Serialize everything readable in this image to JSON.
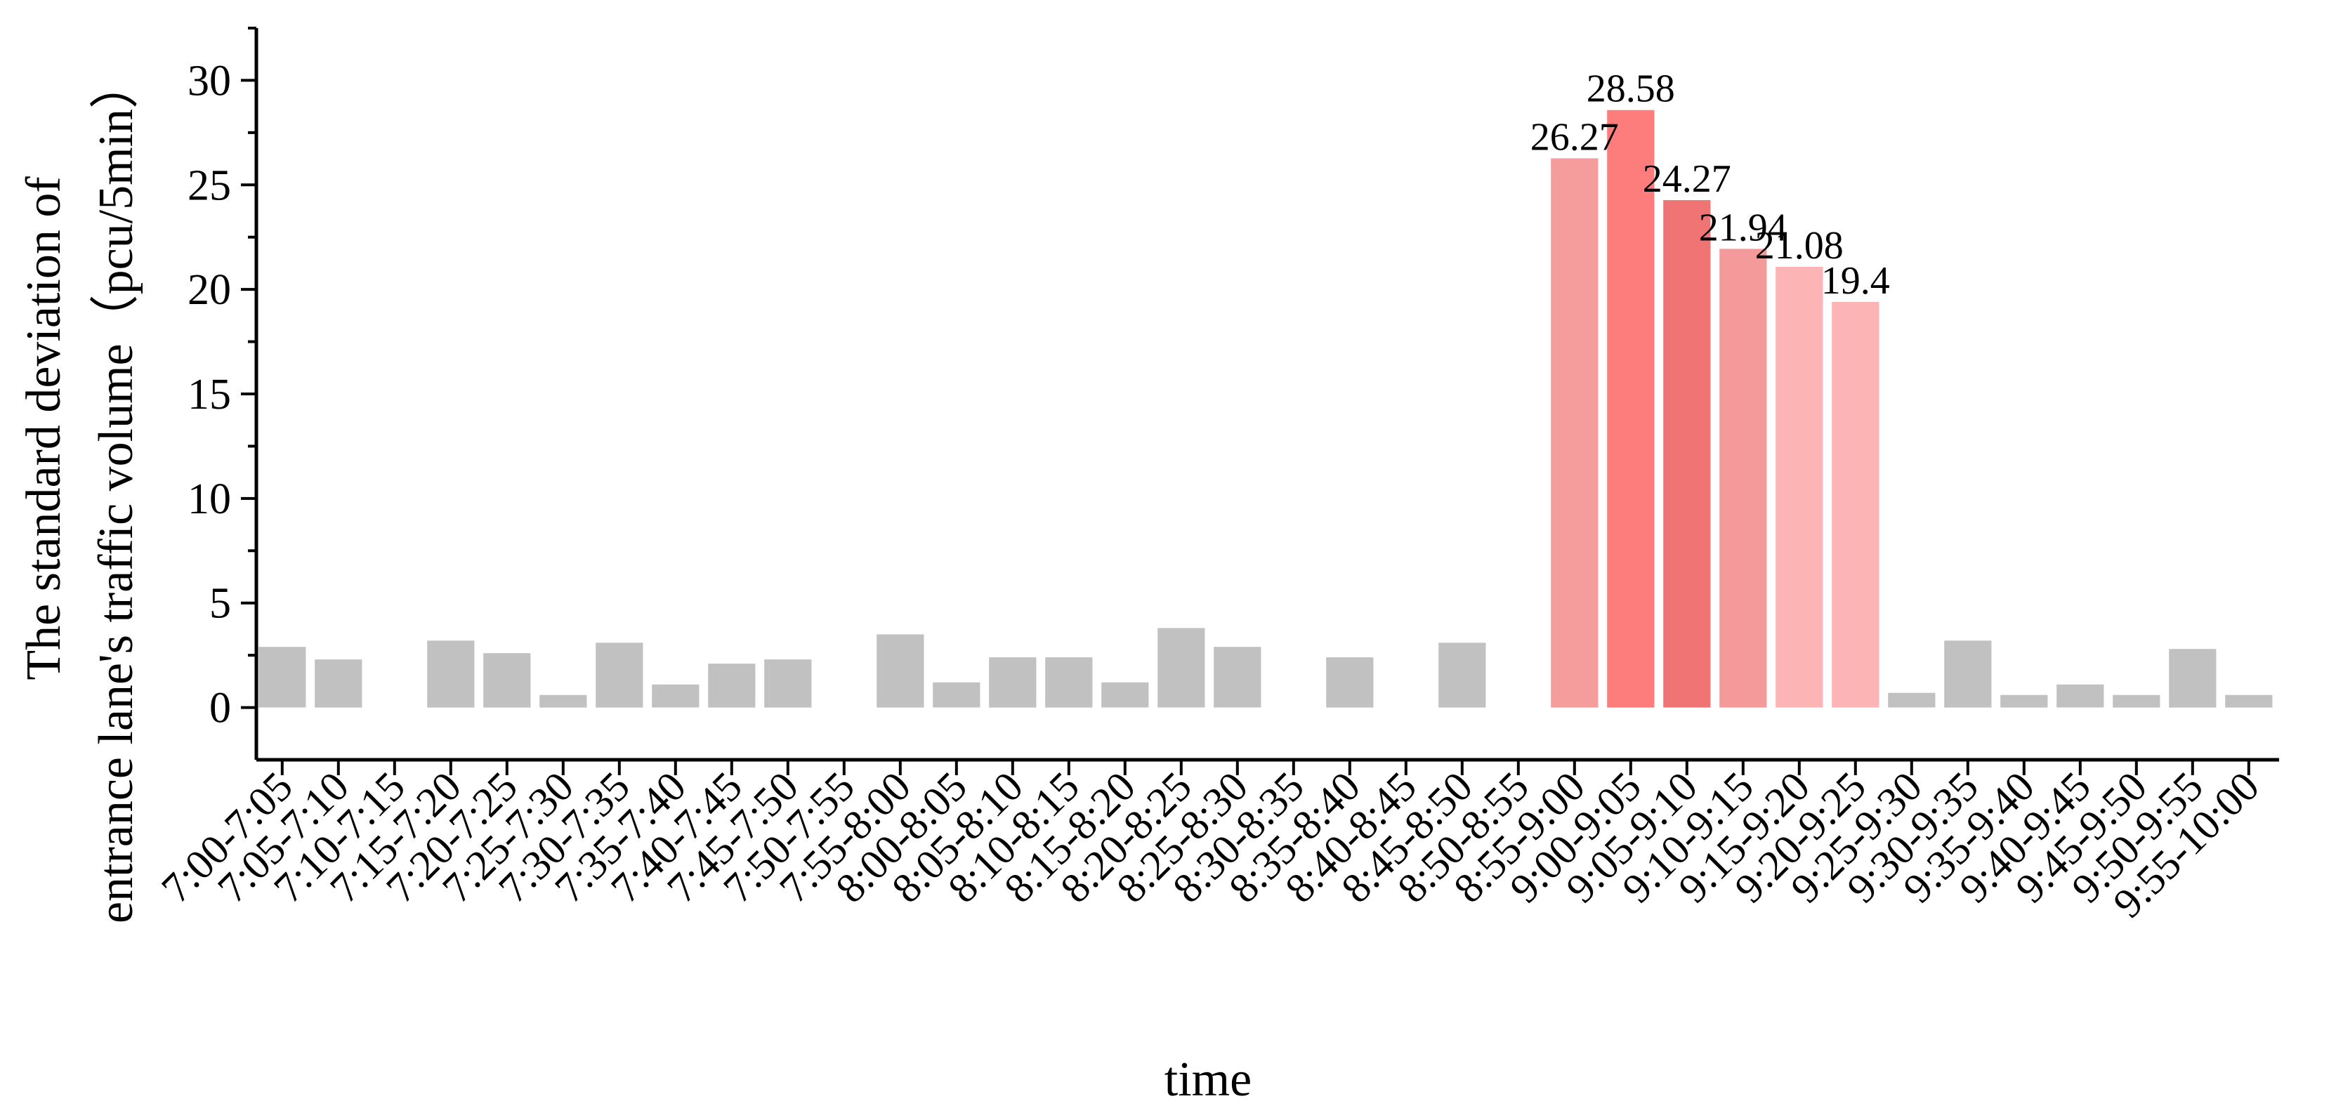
{
  "chart_data": {
    "type": "bar",
    "xlabel": "time",
    "ylabel_lines": [
      "The standard deviation of",
      "entrance lane's traffic volume（pcu/5min）"
    ],
    "ylim": [
      -2.5,
      32.5
    ],
    "yticks": [
      0,
      5,
      10,
      15,
      20,
      25,
      30
    ],
    "grid": false,
    "categories": [
      "7:00-7:05",
      "7:05-7:10",
      "7:10-7:15",
      "7:15-7:20",
      "7:20-7:25",
      "7:25-7:30",
      "7:30-7:35",
      "7:35-7:40",
      "7:40-7:45",
      "7:45-7:50",
      "7:50-7:55",
      "7:55-8:00",
      "8:00-8:05",
      "8:05-8:10",
      "8:10-8:15",
      "8:15-8:20",
      "8:20-8:25",
      "8:25-8:30",
      "8:30-8:35",
      "8:35-8:40",
      "8:40-8:45",
      "8:45-8:50",
      "8:50-8:55",
      "8:55-9:00",
      "9:00-9:05",
      "9:05-9:10",
      "9:10-9:15",
      "9:15-9:20",
      "9:20-9:25",
      "9:25-9:30",
      "9:30-9:35",
      "9:35-9:40",
      "9:40-9:45",
      "9:45-9:50",
      "9:50-9:55",
      "9:55-10:00"
    ],
    "values": [
      2.9,
      2.3,
      0,
      3.2,
      2.6,
      0.6,
      3.1,
      1.1,
      2.1,
      2.3,
      0,
      3.5,
      1.2,
      2.4,
      2.4,
      1.2,
      3.8,
      2.9,
      0,
      2.4,
      0,
      3.1,
      0,
      26.27,
      28.58,
      24.27,
      21.94,
      21.08,
      19.4,
      0.7,
      3.2,
      0.6,
      1.1,
      0.6,
      2.8,
      0.6
    ],
    "data_labels": [
      {
        "index": 23,
        "text": "26.27"
      },
      {
        "index": 24,
        "text": "28.58"
      },
      {
        "index": 25,
        "text": "24.27"
      },
      {
        "index": 26,
        "text": "21.94"
      },
      {
        "index": 27,
        "text": "21.08"
      },
      {
        "index": 28,
        "text": "19.4"
      }
    ],
    "colors": {
      "default": "#c1c1c1",
      "highlight": [
        "#f59d9d",
        "#fd7d7d",
        "#f17474",
        "#f59a9a",
        "#fcb4b4",
        "#fcb4b4"
      ]
    }
  }
}
